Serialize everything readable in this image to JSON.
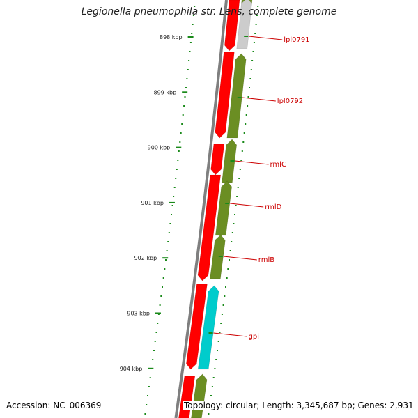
{
  "title": "Legionella pneumophila str. Lens, complete genome",
  "footer": {
    "accession": "Accession: NC_006369",
    "summary": "Topology: circular; Length: 3,345,687 bp; Genes: 2,931"
  },
  "colors": {
    "forward_strand": "#ff0000",
    "reverse_strand_olive": "#6b8e23",
    "reverse_strand_grey": "#cccccc",
    "reverse_strand_cyan": "#00cccc",
    "tick": "#1a8a1a",
    "label": "#cc0000",
    "backbone": "#7f7f7f"
  },
  "scale_labels": [
    "898 kbp",
    "899 kbp",
    "900 kbp",
    "901 kbp",
    "902 kbp",
    "903 kbp",
    "904 kbp"
  ],
  "genes": [
    {
      "name": "lpl0791",
      "strand": "reverse",
      "color": "grey"
    },
    {
      "name": "lpl0792",
      "strand": "reverse",
      "color": "olive"
    },
    {
      "name": "rmlC",
      "strand": "reverse",
      "color": "olive"
    },
    {
      "name": "rmlD",
      "strand": "reverse",
      "color": "olive"
    },
    {
      "name": "rmlB",
      "strand": "reverse",
      "color": "olive"
    },
    {
      "name": "gpi",
      "strand": "reverse",
      "color": "cyan"
    }
  ]
}
